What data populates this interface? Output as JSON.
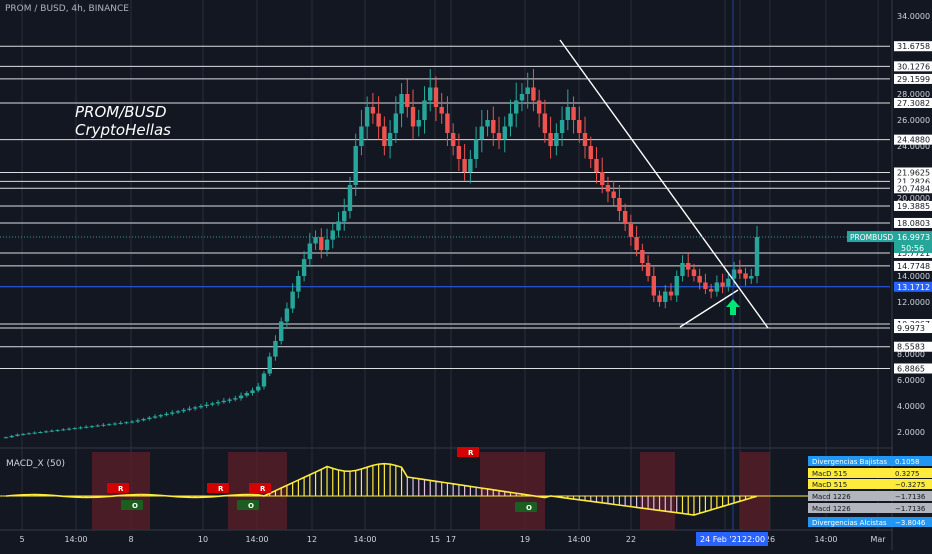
{
  "header": {
    "title": "PROM / BUSD, 4h, BINANCE"
  },
  "annotations": {
    "line1": "PROM/BUSD",
    "line2": "CryptoHellas"
  },
  "colors": {
    "up": "#26a69a",
    "down": "#ef5350",
    "bg": "#131722",
    "grid": "#2a2e39",
    "level": "#ffffff"
  },
  "icons": {
    "signal": "green-up-arrow-icon"
  },
  "chart_data": {
    "type": "candlestick",
    "price_axis_ticks": [
      "34.0000",
      "30.0000",
      "28.0000",
      "26.0000",
      "24.0000",
      "22.0000",
      "20.0000",
      "18.0000",
      "16.0000",
      "14.0000",
      "12.0000",
      "10.0000",
      "8.0000",
      "6.0000",
      "4.0000",
      "2.0000"
    ],
    "price_labels": [
      {
        "label": "31.6758",
        "value": 31.6758
      },
      {
        "label": "30.1276",
        "value": 30.1276
      },
      {
        "label": "29.1599",
        "value": 29.1599
      },
      {
        "label": "27.3082",
        "value": 27.3082
      },
      {
        "label": "24.4880",
        "value": 24.488
      },
      {
        "label": "21.9625",
        "value": 21.9625
      },
      {
        "label": "21.2826",
        "value": 21.2826
      },
      {
        "label": "20.7484",
        "value": 20.7484
      },
      {
        "label": "19.3885",
        "value": 19.3885
      },
      {
        "label": "18.0803",
        "value": 18.0803
      },
      {
        "label": "15.7721",
        "value": 15.7721
      },
      {
        "label": "14.7748",
        "value": 14.7748
      },
      {
        "label": "10.3067",
        "value": 10.3067
      },
      {
        "label": "9.9973",
        "value": 9.9973
      },
      {
        "label": "8.5583",
        "value": 8.5583
      },
      {
        "label": "6.8865",
        "value": 6.8865
      }
    ],
    "highlight_level": {
      "label": "13.1712",
      "value": 13.1712
    },
    "last_price": {
      "symbol": "PROMBUSD",
      "label": "16.9973",
      "value": 16.9973,
      "countdown": "50:56"
    },
    "time_axis": [
      "5",
      "14:00",
      "8",
      "10",
      "14:00",
      "12",
      "14:00",
      "15",
      "17",
      "19",
      "14:00",
      "22",
      "24 Feb '21",
      "22:00",
      "26",
      "14:00",
      "Mar"
    ],
    "cursor_time": "24 Feb '21",
    "cursor_clock": "22:00",
    "closes": [
      1.6,
      1.7,
      1.8,
      1.85,
      1.9,
      1.95,
      2.0,
      2.05,
      2.1,
      2.15,
      2.2,
      2.25,
      2.3,
      2.35,
      2.4,
      2.45,
      2.5,
      2.55,
      2.6,
      2.65,
      2.7,
      2.75,
      2.8,
      2.9,
      3.0,
      3.1,
      3.2,
      3.3,
      3.4,
      3.5,
      3.6,
      3.7,
      3.8,
      3.9,
      4.0,
      4.1,
      4.2,
      4.3,
      4.4,
      4.5,
      4.6,
      4.8,
      5.0,
      5.2,
      5.5,
      6.5,
      7.8,
      9.0,
      10.5,
      11.5,
      12.8,
      14.0,
      15.3,
      16.5,
      17.0,
      16.0,
      16.8,
      17.5,
      18.2,
      19.0,
      21.0,
      24.0,
      25.5,
      27.0,
      26.5,
      25.5,
      24.0,
      25.0,
      26.5,
      28.0,
      27.0,
      25.5,
      26.0,
      27.5,
      28.5,
      27.0,
      26.5,
      25.0,
      24.0,
      23.0,
      22.0,
      23.0,
      24.5,
      25.5,
      26.0,
      25.0,
      24.5,
      25.5,
      26.5,
      27.5,
      28.0,
      28.5,
      27.5,
      26.5,
      25.0,
      24.0,
      25.0,
      26.0,
      27.0,
      26.0,
      25.0,
      24.0,
      23.0,
      22.0,
      21.0,
      20.5,
      20.0,
      19.0,
      18.0,
      17.0,
      16.0,
      15.0,
      14.0,
      12.5,
      12.0,
      12.8,
      12.5,
      14.0,
      15.0,
      14.5,
      14.0,
      13.5,
      13.0,
      12.8,
      13.5,
      13.2,
      13.8,
      14.5,
      14.2,
      13.8,
      14.0,
      16.9973
    ]
  },
  "indicator": {
    "name": "MACD_X (50)",
    "labels": [
      {
        "label": "Divergencias Bajistas",
        "value": "0.1058",
        "style": "blue"
      },
      {
        "label": "MacD 515",
        "value": "0.3275",
        "style": "yellow"
      },
      {
        "label": "MacD 515",
        "value": "−0.3275",
        "style": "yellow"
      },
      {
        "label": "Macd 1226",
        "value": "−1.7136",
        "style": "grey"
      },
      {
        "label": "Macd 1226",
        "value": "−1.7136",
        "style": "grey"
      },
      {
        "label": "Divergencias Alcistas",
        "value": "−3.8046",
        "style": "blue"
      }
    ],
    "signals": [
      {
        "text": "R",
        "type": "sell"
      },
      {
        "text": "R",
        "type": "sell"
      },
      {
        "text": "R",
        "type": "sell"
      },
      {
        "text": "R",
        "type": "sell"
      },
      {
        "text": "O",
        "type": "buy"
      },
      {
        "text": "O",
        "type": "buy"
      },
      {
        "text": "O",
        "type": "buy"
      }
    ]
  }
}
